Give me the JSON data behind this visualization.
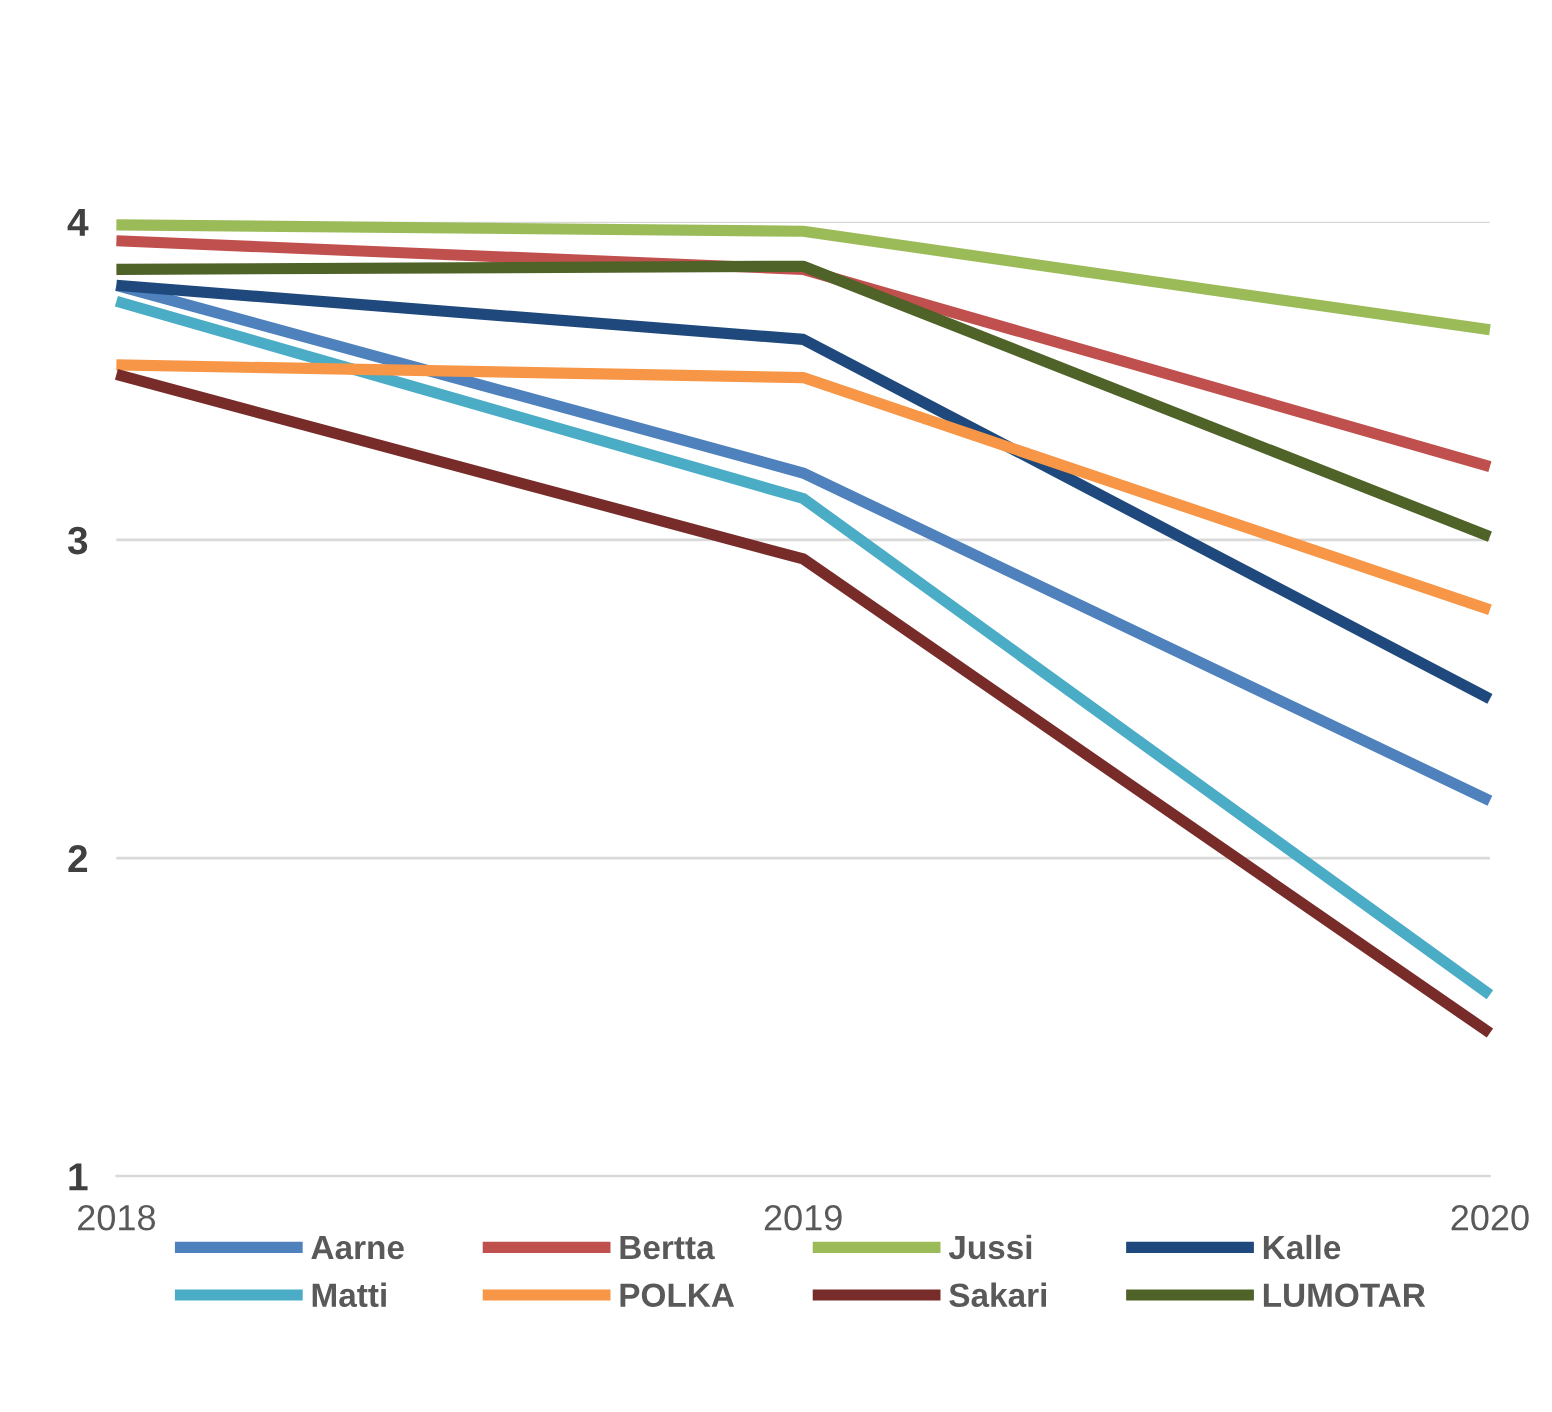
{
  "chart_data": {
    "type": "line",
    "categories": [
      "2018",
      "2019",
      "2020"
    ],
    "series": [
      {
        "name": "Aarne",
        "color": "#4f81bd",
        "values": [
          3.8,
          3.21,
          2.18
        ]
      },
      {
        "name": "Bertta",
        "color": "#c0504d",
        "values": [
          3.94,
          3.85,
          3.23
        ]
      },
      {
        "name": "Jussi",
        "color": "#9bbb59",
        "values": [
          3.99,
          3.97,
          3.66
        ]
      },
      {
        "name": "Kalle",
        "color": "#1f497d",
        "values": [
          3.8,
          3.63,
          2.5
        ]
      },
      {
        "name": "Matti",
        "color": "#4bacc6",
        "values": [
          3.75,
          3.13,
          1.57
        ]
      },
      {
        "name": "POLKA",
        "color": "#f79646",
        "values": [
          3.55,
          3.51,
          2.78
        ]
      },
      {
        "name": "Sakari",
        "color": "#772c2a",
        "values": [
          3.52,
          2.94,
          1.45
        ]
      },
      {
        "name": "LUMOTAR",
        "color": "#4f6228",
        "values": [
          3.85,
          3.86,
          3.01
        ]
      }
    ],
    "ylim": [
      1,
      4
    ],
    "yticks": [
      1,
      2,
      3,
      4
    ],
    "grid": "y",
    "legend": "bottom",
    "marker": "none",
    "line_style": "solid"
  }
}
